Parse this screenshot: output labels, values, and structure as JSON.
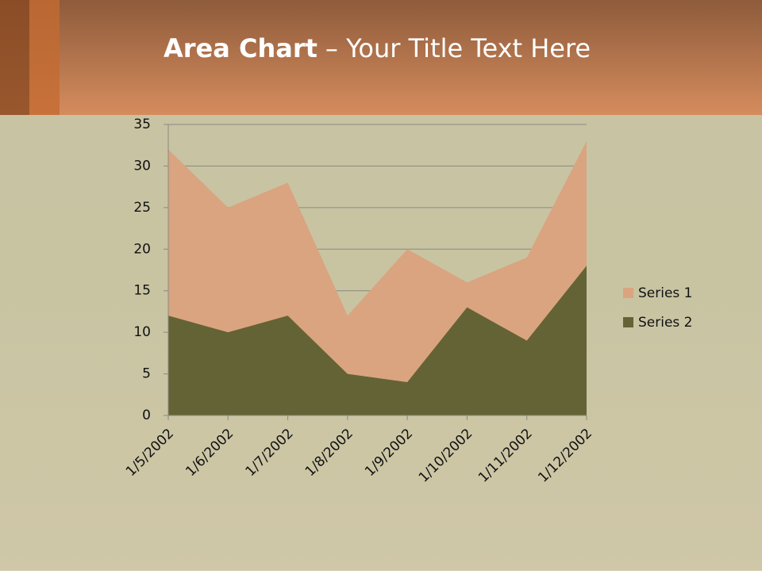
{
  "chart_data": {
    "type": "area",
    "title": [
      "Area Chart",
      "– Your Title Text Here"
    ],
    "categories": [
      "1/5/2002",
      "1/6/2002",
      "1/7/2002",
      "1/8/2002",
      "1/9/2002",
      "1/10/2002",
      "1/11/2002",
      "1/12/2002"
    ],
    "series": [
      {
        "name": "Series 1",
        "color": "#d9a47f",
        "values": [
          32,
          25,
          28,
          12,
          20,
          16,
          19,
          33
        ]
      },
      {
        "name": "Series 2",
        "color": "#646335",
        "values": [
          12,
          10,
          12,
          5,
          4,
          13,
          9,
          18
        ]
      }
    ],
    "ylim": [
      0,
      35
    ],
    "yticks": [
      0,
      5,
      10,
      15,
      20,
      25,
      30,
      35
    ],
    "grid": true,
    "legend": "right"
  }
}
